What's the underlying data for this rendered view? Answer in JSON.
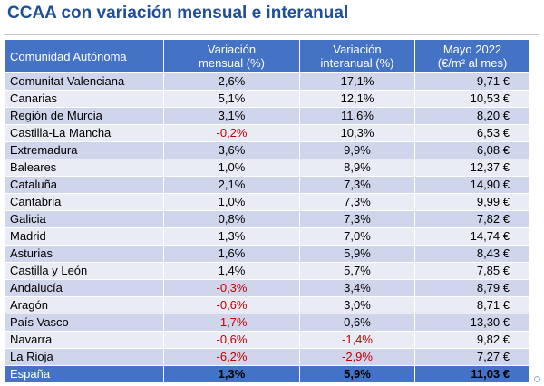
{
  "title": "CCAA con variación mensual e interanual",
  "headers": {
    "name": "Comunidad Autónoma",
    "monthly_line1": "Variación",
    "monthly_line2": "mensual (%)",
    "annual_line1": "Variación",
    "annual_line2": "interanual (%)",
    "price_line1": "Mayo 2022",
    "price_line2": "(€/m² al mes)"
  },
  "rows": [
    {
      "name": "Comunitat Valenciana",
      "monthly": "2,6%",
      "annual": "17,1%",
      "price": "9,71 €",
      "monthly_neg": false,
      "annual_neg": false
    },
    {
      "name": "Canarias",
      "monthly": "5,1%",
      "annual": "12,1%",
      "price": "10,53 €",
      "monthly_neg": false,
      "annual_neg": false
    },
    {
      "name": "Región de Murcia",
      "monthly": "3,1%",
      "annual": "11,6%",
      "price": "8,20 €",
      "monthly_neg": false,
      "annual_neg": false
    },
    {
      "name": "Castilla-La Mancha",
      "monthly": "-0,2%",
      "annual": "10,3%",
      "price": "6,53 €",
      "monthly_neg": true,
      "annual_neg": false
    },
    {
      "name": "Extremadura",
      "monthly": "3,6%",
      "annual": "9,9%",
      "price": "6,08 €",
      "monthly_neg": false,
      "annual_neg": false
    },
    {
      "name": "Baleares",
      "monthly": "1,0%",
      "annual": "8,9%",
      "price": "12,37 €",
      "monthly_neg": false,
      "annual_neg": false
    },
    {
      "name": "Cataluña",
      "monthly": "2,1%",
      "annual": "7,3%",
      "price": "14,90 €",
      "monthly_neg": false,
      "annual_neg": false
    },
    {
      "name": "Cantabria",
      "monthly": "1,0%",
      "annual": "7,3%",
      "price": "9,99 €",
      "monthly_neg": false,
      "annual_neg": false
    },
    {
      "name": "Galicia",
      "monthly": "0,8%",
      "annual": "7,3%",
      "price": "7,82 €",
      "monthly_neg": false,
      "annual_neg": false
    },
    {
      "name": "Madrid",
      "monthly": "1,3%",
      "annual": "7,0%",
      "price": "14,74 €",
      "monthly_neg": false,
      "annual_neg": false
    },
    {
      "name": "Asturias",
      "monthly": "1,6%",
      "annual": "5,9%",
      "price": "8,43 €",
      "monthly_neg": false,
      "annual_neg": false
    },
    {
      "name": "Castilla y León",
      "monthly": "1,4%",
      "annual": "5,7%",
      "price": "7,85 €",
      "monthly_neg": false,
      "annual_neg": false
    },
    {
      "name": "Andalucía",
      "monthly": "-0,3%",
      "annual": "3,4%",
      "price": "8,79 €",
      "monthly_neg": true,
      "annual_neg": false
    },
    {
      "name": "Aragón",
      "monthly": "-0,6%",
      "annual": "3,0%",
      "price": "8,71 €",
      "monthly_neg": true,
      "annual_neg": false
    },
    {
      "name": "País Vasco",
      "monthly": "-1,7%",
      "annual": "0,6%",
      "price": "13,30 €",
      "monthly_neg": true,
      "annual_neg": false
    },
    {
      "name": "Navarra",
      "monthly": "-0,6%",
      "annual": "-1,4%",
      "price": "9,82 €",
      "monthly_neg": true,
      "annual_neg": true
    },
    {
      "name": "La Rioja",
      "monthly": "-6,2%",
      "annual": "-2,9%",
      "price": "7,27 €",
      "monthly_neg": true,
      "annual_neg": true
    }
  ],
  "total": {
    "name": "España",
    "monthly": "1,3%",
    "annual": "5,9%",
    "price": "11,03 €"
  },
  "colors": {
    "title": "#1f4e9a",
    "header_bg": "#4472c4",
    "row_dark": "#cfd5ea",
    "row_light": "#e9ebf5",
    "negative": "#c00000"
  }
}
